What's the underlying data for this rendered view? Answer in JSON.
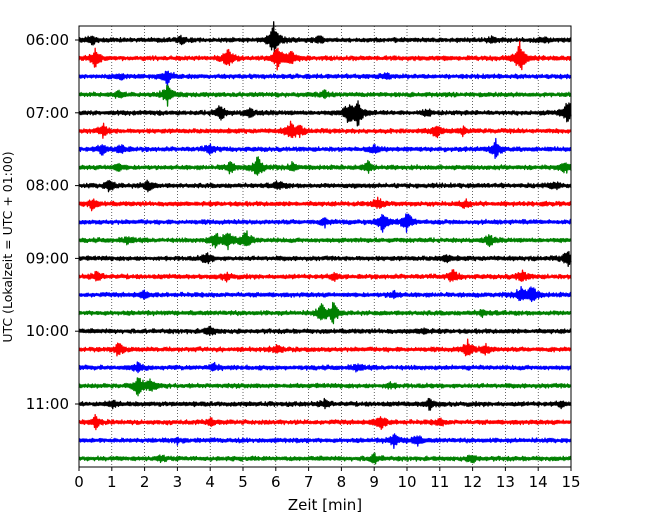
{
  "chart_data": {
    "type": "line",
    "chart_kind": "helicorder",
    "title": "",
    "xlabel": "Zeit  [min]",
    "ylabel": "UTC (Lokalzeit = UTC + 01:00)",
    "xlim": [
      0,
      15
    ],
    "x_ticks": [
      "0",
      "1",
      "2",
      "3",
      "4",
      "5",
      "6",
      "7",
      "8",
      "9",
      "10",
      "11",
      "12",
      "13",
      "14",
      "15"
    ],
    "y_tick_labels": [
      "06:00",
      "07:00",
      "08:00",
      "09:00",
      "10:00",
      "11:00"
    ],
    "vertical_grid": true,
    "grid_style": "dotted",
    "row_minutes": 15,
    "trace_colors": [
      "#000000",
      "#ff0000",
      "#0000ff",
      "#008000"
    ],
    "trace_rows": [
      {
        "start": "06:00",
        "color": "#000000",
        "events": [
          {
            "x": 5.95,
            "amp": 1.0
          },
          {
            "x": 0.4,
            "amp": 0.25
          },
          {
            "x": 3.1,
            "amp": 0.2
          },
          {
            "x": 7.3,
            "amp": 0.2
          },
          {
            "x": 12.6,
            "amp": 0.18
          },
          {
            "x": 14.2,
            "amp": 0.15
          }
        ]
      },
      {
        "start": "06:15",
        "color": "#ff0000",
        "events": [
          {
            "x": 0.5,
            "amp": 0.5
          },
          {
            "x": 4.55,
            "amp": 0.55
          },
          {
            "x": 6.05,
            "amp": 0.6
          },
          {
            "x": 6.45,
            "amp": 0.55
          },
          {
            "x": 13.45,
            "amp": 1.0
          }
        ]
      },
      {
        "start": "06:30",
        "color": "#0000ff",
        "events": [
          {
            "x": 2.7,
            "amp": 0.45
          },
          {
            "x": 1.3,
            "amp": 0.15
          },
          {
            "x": 9.4,
            "amp": 0.15
          }
        ]
      },
      {
        "start": "06:45",
        "color": "#008000",
        "events": [
          {
            "x": 2.7,
            "amp": 0.6
          },
          {
            "x": 1.2,
            "amp": 0.2
          },
          {
            "x": 7.5,
            "amp": 0.18
          }
        ]
      },
      {
        "start": "07:00",
        "color": "#000000",
        "events": [
          {
            "x": 4.3,
            "amp": 0.45
          },
          {
            "x": 8.2,
            "amp": 0.5
          },
          {
            "x": 8.5,
            "amp": 0.75
          },
          {
            "x": 14.9,
            "amp": 0.75
          },
          {
            "x": 5.2,
            "amp": 0.3
          },
          {
            "x": 10.6,
            "amp": 0.2
          }
        ]
      },
      {
        "start": "07:15",
        "color": "#ff0000",
        "events": [
          {
            "x": 0.75,
            "amp": 0.35
          },
          {
            "x": 6.45,
            "amp": 0.45
          },
          {
            "x": 6.7,
            "amp": 0.3
          },
          {
            "x": 10.9,
            "amp": 0.35
          },
          {
            "x": 11.7,
            "amp": 0.2
          }
        ]
      },
      {
        "start": "07:30",
        "color": "#0000ff",
        "events": [
          {
            "x": 0.7,
            "amp": 0.3
          },
          {
            "x": 1.3,
            "amp": 0.25
          },
          {
            "x": 4.0,
            "amp": 0.25
          },
          {
            "x": 12.7,
            "amp": 0.55
          },
          {
            "x": 9.0,
            "amp": 0.2
          }
        ]
      },
      {
        "start": "07:45",
        "color": "#008000",
        "events": [
          {
            "x": 5.45,
            "amp": 0.6
          },
          {
            "x": 4.6,
            "amp": 0.3
          },
          {
            "x": 8.8,
            "amp": 0.35
          },
          {
            "x": 14.8,
            "amp": 0.35
          },
          {
            "x": 1.2,
            "amp": 0.2
          },
          {
            "x": 6.5,
            "amp": 0.25
          }
        ]
      },
      {
        "start": "08:00",
        "color": "#000000",
        "events": [
          {
            "x": 0.95,
            "amp": 0.35
          },
          {
            "x": 2.1,
            "amp": 0.3
          },
          {
            "x": 6.1,
            "amp": 0.25
          },
          {
            "x": 14.5,
            "amp": 0.2
          }
        ]
      },
      {
        "start": "08:15",
        "color": "#ff0000",
        "events": [
          {
            "x": 0.4,
            "amp": 0.3
          },
          {
            "x": 9.1,
            "amp": 0.35
          },
          {
            "x": 11.8,
            "amp": 0.2
          }
        ]
      },
      {
        "start": "08:30",
        "color": "#0000ff",
        "events": [
          {
            "x": 9.25,
            "amp": 0.6
          },
          {
            "x": 10.0,
            "amp": 0.55
          },
          {
            "x": 7.5,
            "amp": 0.2
          }
        ]
      },
      {
        "start": "08:45",
        "color": "#008000",
        "events": [
          {
            "x": 4.15,
            "amp": 0.45
          },
          {
            "x": 4.55,
            "amp": 0.55
          },
          {
            "x": 5.1,
            "amp": 0.5
          },
          {
            "x": 1.5,
            "amp": 0.2
          },
          {
            "x": 12.5,
            "amp": 0.3
          }
        ]
      },
      {
        "start": "09:00",
        "color": "#000000",
        "events": [
          {
            "x": 3.9,
            "amp": 0.3
          },
          {
            "x": 14.9,
            "amp": 0.45
          },
          {
            "x": 11.2,
            "amp": 0.2
          }
        ]
      },
      {
        "start": "09:15",
        "color": "#ff0000",
        "events": [
          {
            "x": 0.55,
            "amp": 0.3
          },
          {
            "x": 11.4,
            "amp": 0.35
          },
          {
            "x": 13.5,
            "amp": 0.35
          },
          {
            "x": 4.5,
            "amp": 0.2
          },
          {
            "x": 7.8,
            "amp": 0.2
          }
        ]
      },
      {
        "start": "09:30",
        "color": "#0000ff",
        "events": [
          {
            "x": 13.45,
            "amp": 0.45
          },
          {
            "x": 13.8,
            "amp": 0.55
          },
          {
            "x": 2.0,
            "amp": 0.2
          },
          {
            "x": 9.6,
            "amp": 0.2
          }
        ]
      },
      {
        "start": "09:45",
        "color": "#008000",
        "events": [
          {
            "x": 7.4,
            "amp": 0.45
          },
          {
            "x": 7.75,
            "amp": 0.6
          },
          {
            "x": 12.3,
            "amp": 0.15
          }
        ]
      },
      {
        "start": "10:00",
        "color": "#000000",
        "events": [
          {
            "x": 4.0,
            "amp": 0.25
          },
          {
            "x": 10.5,
            "amp": 0.15
          }
        ]
      },
      {
        "start": "10:15",
        "color": "#ff0000",
        "events": [
          {
            "x": 1.2,
            "amp": 0.35
          },
          {
            "x": 11.85,
            "amp": 0.45
          },
          {
            "x": 12.4,
            "amp": 0.3
          },
          {
            "x": 6.0,
            "amp": 0.2
          }
        ]
      },
      {
        "start": "10:30",
        "color": "#0000ff",
        "events": [
          {
            "x": 1.8,
            "amp": 0.25
          },
          {
            "x": 4.1,
            "amp": 0.2
          },
          {
            "x": 8.5,
            "amp": 0.2
          }
        ]
      },
      {
        "start": "10:45",
        "color": "#008000",
        "events": [
          {
            "x": 1.8,
            "amp": 0.55
          },
          {
            "x": 2.2,
            "amp": 0.35
          },
          {
            "x": 9.5,
            "amp": 0.15
          }
        ]
      },
      {
        "start": "11:00",
        "color": "#000000",
        "events": [
          {
            "x": 1.0,
            "amp": 0.2
          },
          {
            "x": 7.5,
            "amp": 0.25
          },
          {
            "x": 10.7,
            "amp": 0.3
          },
          {
            "x": 14.7,
            "amp": 0.15
          }
        ]
      },
      {
        "start": "11:15",
        "color": "#ff0000",
        "events": [
          {
            "x": 0.5,
            "amp": 0.35
          },
          {
            "x": 9.2,
            "amp": 0.45
          },
          {
            "x": 4.0,
            "amp": 0.2
          },
          {
            "x": 11.0,
            "amp": 0.2
          }
        ]
      },
      {
        "start": "11:30",
        "color": "#0000ff",
        "events": [
          {
            "x": 9.6,
            "amp": 0.35
          },
          {
            "x": 10.3,
            "amp": 0.3
          },
          {
            "x": 3.0,
            "amp": 0.15
          }
        ]
      },
      {
        "start": "11:45",
        "color": "#008000",
        "events": [
          {
            "x": 9.0,
            "amp": 0.25
          },
          {
            "x": 12.0,
            "amp": 0.2
          },
          {
            "x": 2.5,
            "amp": 0.15
          }
        ]
      }
    ]
  }
}
